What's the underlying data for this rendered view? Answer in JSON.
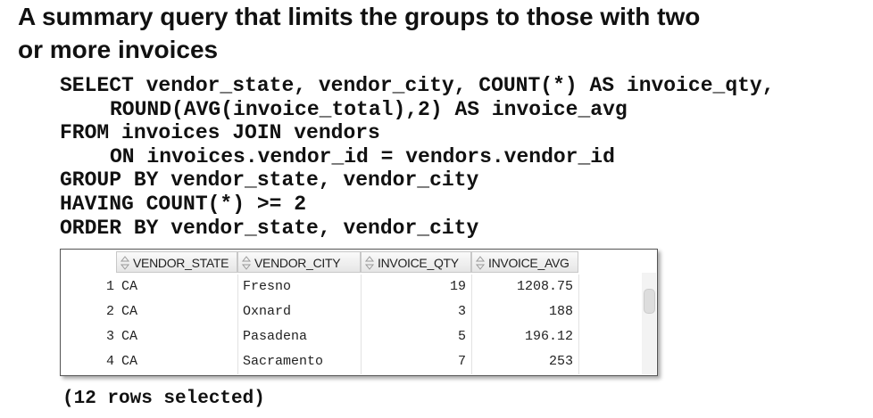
{
  "header": {
    "title_lines": [
      "A summary query that limits the groups to those with two",
      "or more invoices"
    ]
  },
  "code": {
    "lines": [
      {
        "text": "SELECT vendor_state, vendor_city, COUNT(*) AS invoice_qty,",
        "indent": 0
      },
      {
        "text": "ROUND(AVG(invoice_total),2) AS invoice_avg",
        "indent": 1
      },
      {
        "text": "FROM invoices JOIN vendors",
        "indent": 0
      },
      {
        "text": "ON invoices.vendor_id = vendors.vendor_id",
        "indent": 1
      },
      {
        "text": "GROUP BY vendor_state, vendor_city",
        "indent": 0
      },
      {
        "text": "HAVING COUNT(*) >= 2",
        "indent": 0
      },
      {
        "text": "ORDER BY vendor_state, vendor_city",
        "indent": 0
      }
    ]
  },
  "table": {
    "columns": [
      "VENDOR_STATE",
      "VENDOR_CITY",
      "INVOICE_QTY",
      "INVOICE_AVG"
    ],
    "rows": [
      [
        1,
        "CA",
        "Fresno",
        19,
        1208.75
      ],
      [
        2,
        "CA",
        "Oxnard",
        3,
        188
      ],
      [
        3,
        "CA",
        "Pasadena",
        5,
        196.12
      ],
      [
        4,
        "CA",
        "Sacramento",
        7,
        253
      ]
    ]
  },
  "footer": {
    "note": "(12 rows selected)"
  }
}
